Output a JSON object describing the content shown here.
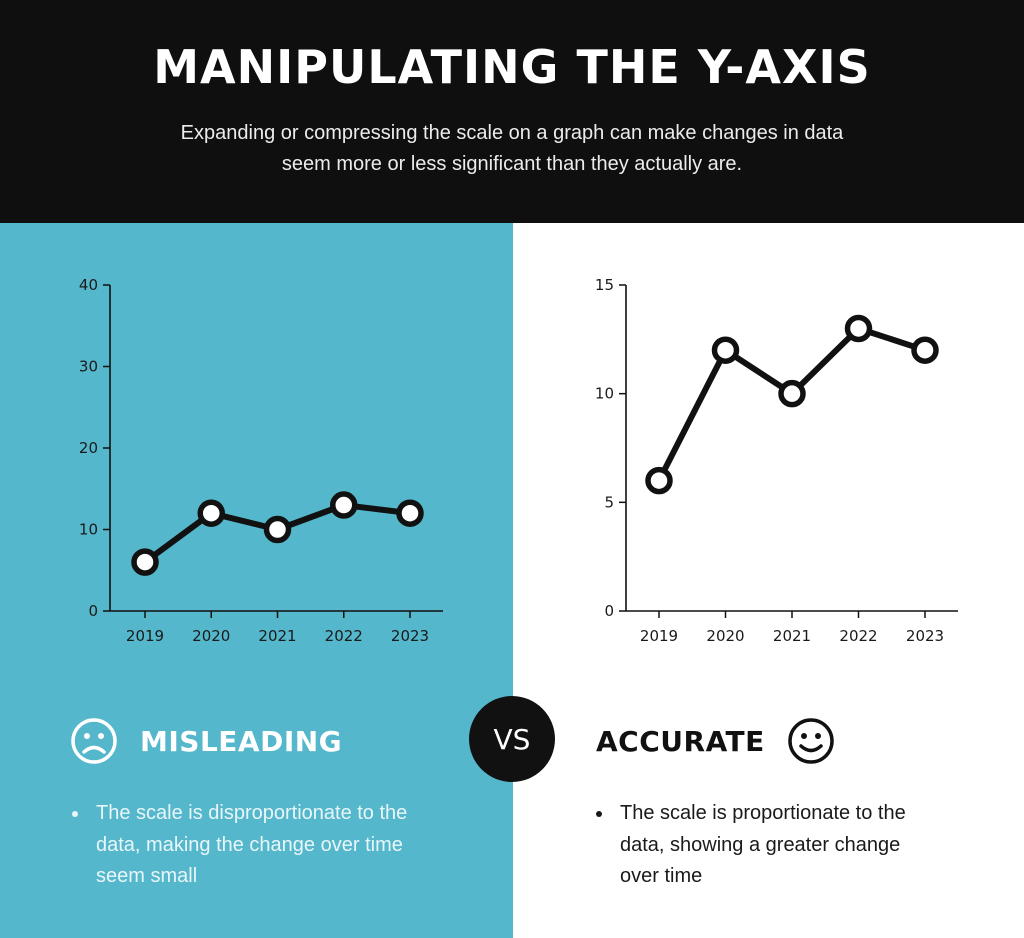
{
  "header": {
    "title": "MANIPULATING THE Y-AXIS",
    "subtitle": "Expanding or compressing the scale on a graph can make changes in data seem more or less significant than they actually are."
  },
  "colors": {
    "header_bg": "#0f0f0f",
    "left_panel_bg": "#55b7cb",
    "right_panel_bg": "#ffffff",
    "line": "#111111",
    "marker_fill": "#ffffff"
  },
  "chart_data": [
    {
      "type": "line",
      "x": [
        "2019",
        "2020",
        "2021",
        "2022",
        "2023"
      ],
      "values": [
        6,
        12,
        10,
        13,
        12
      ],
      "ylim": [
        0,
        40
      ],
      "yticks": [
        "0",
        "10",
        "20",
        "30",
        "40"
      ],
      "title": "",
      "xlabel": "",
      "ylabel": "",
      "grid": false
    },
    {
      "type": "line",
      "x": [
        "2019",
        "2020",
        "2021",
        "2022",
        "2023"
      ],
      "values": [
        6,
        12,
        10,
        13,
        12
      ],
      "ylim": [
        0,
        15
      ],
      "yticks": [
        "0",
        "5",
        "10",
        "15"
      ],
      "title": "",
      "xlabel": "",
      "ylabel": "",
      "grid": false
    }
  ],
  "vs_label": "VS",
  "misleading": {
    "label": "MISLEADING",
    "icon": "sad-face-icon",
    "bullets": [
      "The scale is disproportionate to the data, making the change over time seem small"
    ]
  },
  "accurate": {
    "label": "ACCURATE",
    "icon": "smiley-face-icon",
    "bullets": [
      "The scale is proportionate to the data, showing a greater change over time"
    ]
  }
}
